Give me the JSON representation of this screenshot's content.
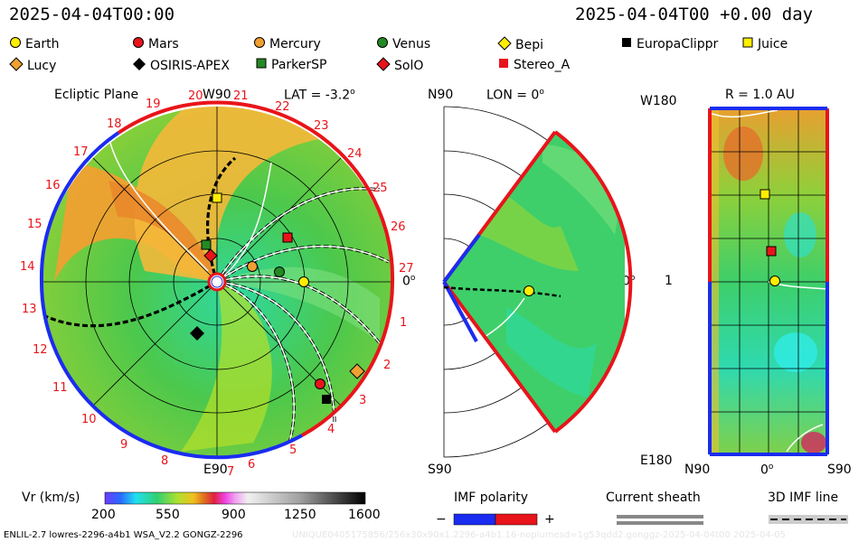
{
  "header": {
    "left_time": "2025-04-04T00:00",
    "right_time": "2025-04-04T00 +0.00 day"
  },
  "legend": [
    {
      "name": "Earth",
      "color": "#ffee00",
      "shape": "circle"
    },
    {
      "name": "Mars",
      "color": "#e8141a",
      "shape": "circle"
    },
    {
      "name": "Mercury",
      "color": "#f0a030",
      "shape": "circle"
    },
    {
      "name": "Venus",
      "color": "#238a23",
      "shape": "circle"
    },
    {
      "name": "Bepi",
      "color": "#ffee00",
      "shape": "diamond"
    },
    {
      "name": "EuropaClippr",
      "color": "#000000",
      "shape": "square"
    },
    {
      "name": "Juice",
      "color": "#ffee00",
      "shape": "square"
    },
    {
      "name": "Lucy",
      "color": "#f0a030",
      "shape": "diamond"
    },
    {
      "name": "OSIRIS-APEX",
      "color": "#000000",
      "shape": "diamond"
    },
    {
      "name": "ParkerSP",
      "color": "#238a23",
      "shape": "square"
    },
    {
      "name": "SolO",
      "color": "#e8141a",
      "shape": "diamond"
    },
    {
      "name": "Stereo_A",
      "color": "#e8141a",
      "shape": "square"
    }
  ],
  "ecliptic": {
    "title": "Ecliptic Plane",
    "top_label": "W90",
    "lat_label": "LAT = -3.2",
    "deg": "o",
    "right_label": "0",
    "bottom_label": "E90",
    "carrington": [
      "1",
      "2",
      "3",
      "4",
      "5",
      "6",
      "7",
      "8",
      "9",
      "10",
      "11",
      "12",
      "13",
      "14",
      "15",
      "16",
      "17",
      "18",
      "19",
      "20",
      "21",
      "22",
      "23",
      "24",
      "25",
      "26",
      "27"
    ]
  },
  "meridional": {
    "left_top": "N90",
    "title": "LON = 0",
    "deg": "o",
    "right_label": "0",
    "bottom_label": "S90"
  },
  "radial": {
    "title": "R = 1.0 AU",
    "top_left": "W180",
    "mid_left": "1",
    "bottom_left": "E180",
    "x_left": "N90",
    "x_mid": "0",
    "deg": "o",
    "x_right": "S90"
  },
  "colorbar": {
    "label": "Vr (km/s)",
    "ticks": [
      "200",
      "550",
      "900",
      "1250",
      "1600"
    ]
  },
  "imf": {
    "label": "IMF polarity",
    "minus": "−",
    "plus": "+"
  },
  "sheath": {
    "label": "Current sheath"
  },
  "imf3d": {
    "label": "3D IMF line"
  },
  "footer": {
    "left": "ENLIL-2.7 lowres-2296-a4b1 WSA_V2.2 GONGZ-2296",
    "right": "UNIQUE0405175856/256x30x90x1.2296-a4b1.16-noplumesd=1g53qdd2.gonggz-2025-04-04t00 2025-04-05"
  }
}
